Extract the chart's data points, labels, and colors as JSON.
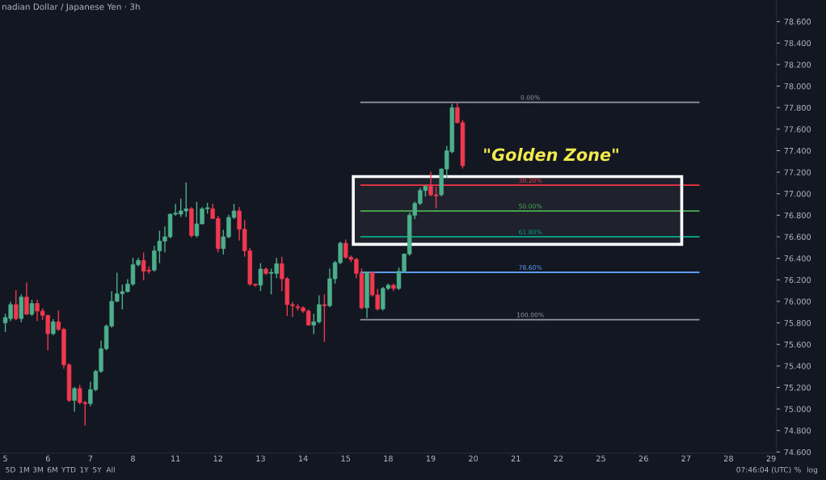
{
  "chart_data": {
    "type": "candlestick",
    "title": "nadian Dollar / Japanese Yen · 3h",
    "categories": [
      "5",
      null,
      null,
      null,
      null,
      null,
      null,
      null,
      "6",
      null,
      null,
      null,
      null,
      null,
      null,
      null,
      "7",
      null,
      null,
      null,
      null,
      null,
      null,
      null,
      "8",
      null,
      null,
      null,
      null,
      null,
      null,
      null,
      "11",
      null,
      null,
      null,
      null,
      null,
      null,
      null,
      "12",
      null,
      null,
      null,
      null,
      null,
      null,
      null,
      "13",
      null,
      null,
      null,
      null,
      null,
      null,
      null,
      "14",
      null,
      null,
      null,
      null,
      null,
      null,
      null,
      "15",
      null,
      null,
      null,
      null,
      null,
      null,
      null,
      "18",
      null,
      null,
      null,
      null,
      null,
      null,
      null,
      "19",
      null,
      null,
      null,
      null,
      null,
      null,
      null,
      "20",
      null,
      null,
      null,
      null,
      null,
      null,
      null,
      "21",
      null,
      null,
      null,
      null,
      null,
      null,
      null,
      "22",
      null,
      null,
      null,
      null,
      null,
      null,
      null,
      "25",
      null,
      null,
      null,
      null,
      null,
      null,
      null,
      "26",
      null,
      null,
      null,
      null,
      null,
      null,
      null,
      "27",
      null,
      null,
      null,
      null,
      null,
      null,
      null,
      "28",
      null,
      null,
      null,
      null,
      null,
      null,
      null,
      "29"
    ],
    "ohlc": [
      [
        75.8,
        75.88,
        75.72,
        75.85
      ],
      [
        75.84,
        75.99,
        75.82,
        75.97
      ],
      [
        75.97,
        76.1,
        75.83,
        75.84
      ],
      [
        75.84,
        76.06,
        75.81,
        76.04
      ],
      [
        76.04,
        76.17,
        75.88,
        75.88
      ],
      [
        75.88,
        76.01,
        75.87,
        75.98
      ],
      [
        75.98,
        76.01,
        75.82,
        75.91
      ],
      [
        75.91,
        75.93,
        75.83,
        75.87
      ],
      [
        75.87,
        75.87,
        75.55,
        75.7
      ],
      [
        75.7,
        75.83,
        75.69,
        75.81
      ],
      [
        75.81,
        75.91,
        75.73,
        75.74
      ],
      [
        75.74,
        75.75,
        75.38,
        75.41
      ],
      [
        75.41,
        75.42,
        75.07,
        75.08
      ],
      [
        75.08,
        75.2,
        74.98,
        75.19
      ],
      [
        75.19,
        75.22,
        75.05,
        75.06
      ],
      [
        75.06,
        75.07,
        74.85,
        75.05
      ],
      [
        75.05,
        75.25,
        75.03,
        75.18
      ],
      [
        75.18,
        75.36,
        75.17,
        75.35
      ],
      [
        75.35,
        75.63,
        75.34,
        75.56
      ],
      [
        75.56,
        75.78,
        75.55,
        75.77
      ],
      [
        75.77,
        76.09,
        75.76,
        76.0
      ],
      [
        76.0,
        76.26,
        76.0,
        76.07
      ],
      [
        76.07,
        76.15,
        75.93,
        76.09
      ],
      [
        76.09,
        76.2,
        76.09,
        76.16
      ],
      [
        76.16,
        76.4,
        76.15,
        76.34
      ],
      [
        76.34,
        76.4,
        76.33,
        76.38
      ],
      [
        76.38,
        76.45,
        76.2,
        76.28
      ],
      [
        76.29,
        76.32,
        76.26,
        76.28
      ],
      [
        76.29,
        76.51,
        76.28,
        76.47
      ],
      [
        76.47,
        76.65,
        76.36,
        76.56
      ],
      [
        76.56,
        76.69,
        76.46,
        76.6
      ],
      [
        76.6,
        76.81,
        76.59,
        76.81
      ],
      [
        76.81,
        76.9,
        76.8,
        76.82
      ],
      [
        76.81,
        76.95,
        76.79,
        76.84
      ],
      [
        76.84,
        77.1,
        76.79,
        76.86
      ],
      [
        76.86,
        76.87,
        76.6,
        76.61
      ],
      [
        76.61,
        76.92,
        76.6,
        76.72
      ],
      [
        76.72,
        76.87,
        76.72,
        76.86
      ],
      [
        76.86,
        76.91,
        76.82,
        76.87
      ],
      [
        76.86,
        76.9,
        76.77,
        76.77
      ],
      [
        76.77,
        76.79,
        76.46,
        76.49
      ],
      [
        76.49,
        76.66,
        76.44,
        76.6
      ],
      [
        76.6,
        76.8,
        76.59,
        76.78
      ],
      [
        76.78,
        76.9,
        76.77,
        76.84
      ],
      [
        76.84,
        76.87,
        76.57,
        76.67
      ],
      [
        76.67,
        76.75,
        76.42,
        76.47
      ],
      [
        76.47,
        76.49,
        76.15,
        76.16
      ],
      [
        76.16,
        76.16,
        76.14,
        76.15
      ],
      [
        76.15,
        76.35,
        76.1,
        76.3
      ],
      [
        76.3,
        76.31,
        76.25,
        76.26
      ],
      [
        76.26,
        76.3,
        76.07,
        76.27
      ],
      [
        76.26,
        76.4,
        76.22,
        76.35
      ],
      [
        76.35,
        76.41,
        76.1,
        76.21
      ],
      [
        76.21,
        76.22,
        75.87,
        75.97
      ],
      [
        75.97,
        75.99,
        75.86,
        75.96
      ],
      [
        75.95,
        75.97,
        75.92,
        75.94
      ],
      [
        75.94,
        75.95,
        75.9,
        75.91
      ],
      [
        75.91,
        75.92,
        75.78,
        75.78
      ],
      [
        75.78,
        75.88,
        75.7,
        75.81
      ],
      [
        75.81,
        76.05,
        75.8,
        75.97
      ],
      [
        75.97,
        76.06,
        75.63,
        75.96
      ],
      [
        75.96,
        76.3,
        75.95,
        76.21
      ],
      [
        76.21,
        76.37,
        76.17,
        76.36
      ],
      [
        76.36,
        76.55,
        76.35,
        76.54
      ],
      [
        76.54,
        76.57,
        76.4,
        76.41
      ],
      [
        76.41,
        76.42,
        76.37,
        76.39
      ],
      [
        76.39,
        76.4,
        76.22,
        76.26
      ],
      [
        76.26,
        76.3,
        75.93,
        75.94
      ],
      [
        75.94,
        76.27,
        75.85,
        76.27
      ],
      [
        76.27,
        76.27,
        76.05,
        76.06
      ],
      [
        76.06,
        76.11,
        75.92,
        75.93
      ],
      [
        75.93,
        76.13,
        75.92,
        76.12
      ],
      [
        76.12,
        76.16,
        76.11,
        76.15
      ],
      [
        76.15,
        76.16,
        76.1,
        76.12
      ],
      [
        76.12,
        76.31,
        76.11,
        76.28
      ],
      [
        76.28,
        76.44,
        76.27,
        76.44
      ],
      [
        76.44,
        76.82,
        76.43,
        76.8
      ],
      [
        76.8,
        76.92,
        76.77,
        76.91
      ],
      [
        76.91,
        77.05,
        76.9,
        77.03
      ],
      [
        77.03,
        77.07,
        76.98,
        77.07
      ],
      [
        77.07,
        77.2,
        76.98,
        76.99
      ],
      [
        76.99,
        77.06,
        76.87,
        76.98
      ],
      [
        76.99,
        77.23,
        76.98,
        77.23
      ],
      [
        77.23,
        77.44,
        77.15,
        77.4
      ],
      [
        77.39,
        77.83,
        77.38,
        77.8
      ],
      [
        77.8,
        77.84,
        77.66,
        77.66
      ],
      [
        77.66,
        77.68,
        77.24,
        77.26
      ],
      null,
      null,
      null,
      null,
      null,
      null,
      null,
      null,
      null,
      null,
      null,
      null,
      null,
      null,
      null,
      null,
      null,
      null,
      null,
      null,
      null,
      null,
      null,
      null,
      null,
      null,
      null,
      null,
      null,
      null,
      null,
      null,
      null,
      null,
      null,
      null,
      null,
      null,
      null,
      null,
      null,
      null,
      null,
      null,
      null,
      null,
      null,
      null,
      null,
      null,
      null,
      null,
      null,
      null,
      null,
      null,
      null,
      null
    ],
    "colors": [
      "#4caf8c",
      "#4caf8c",
      "#f0394f",
      "#4caf8c",
      "#f0394f",
      "#4caf8c",
      "#f0394f",
      "#f0394f",
      "#f0394f",
      "#4caf8c",
      "#f0394f",
      "#f0394f",
      "#f0394f",
      "#4caf8c",
      "#f0394f",
      "#f0394f",
      "#4caf8c",
      "#4caf8c",
      "#4caf8c",
      "#4caf8c",
      "#4caf8c",
      "#4caf8c",
      "#4caf8c",
      "#4caf8c",
      "#4caf8c",
      "#4caf8c",
      "#f0394f",
      "#f0394f",
      "#4caf8c",
      "#4caf8c",
      "#4caf8c",
      "#4caf8c",
      "#4caf8c",
      "#4caf8c",
      "#4caf8c",
      "#f0394f",
      "#4caf8c",
      "#4caf8c",
      "#4caf8c",
      "#f0394f",
      "#f0394f",
      "#4caf8c",
      "#4caf8c",
      "#4caf8c",
      "#f0394f",
      "#f0394f",
      "#f0394f",
      "#f0394f",
      "#4caf8c",
      "#f0394f",
      "#4caf8c",
      "#4caf8c",
      "#f0394f",
      "#f0394f",
      "#f0394f",
      "#f0394f",
      "#f0394f",
      "#f0394f",
      "#4caf8c",
      "#4caf8c",
      "#f0394f",
      "#4caf8c",
      "#4caf8c",
      "#4caf8c",
      "#f0394f",
      "#f0394f",
      "#f0394f",
      "#f0394f",
      "#4caf8c",
      "#f0394f",
      "#f0394f",
      "#4caf8c",
      "#4caf8c",
      "#f0394f",
      "#4caf8c",
      "#4caf8c",
      "#4caf8c",
      "#4caf8c",
      "#4caf8c",
      "#4caf8c",
      "#f0394f",
      "#f0394f",
      "#4caf8c",
      "#4caf8c",
      "#4caf8c",
      "#f0394f",
      "#f0394f",
      null,
      null,
      null,
      null,
      null,
      null,
      null,
      null,
      null,
      null,
      null,
      null,
      null,
      null,
      null,
      null,
      null,
      null,
      null,
      null,
      null,
      null,
      null,
      null,
      null,
      null,
      null,
      null,
      null,
      null,
      null,
      null,
      null,
      null,
      null,
      null,
      null,
      null,
      null,
      null,
      null,
      null,
      null,
      null,
      null,
      null,
      null,
      null,
      null,
      null,
      null,
      null,
      null,
      null,
      null,
      null,
      null,
      null
    ],
    "ylim": [
      74.59,
      78.8
    ],
    "yticks": [
      {
        "value": 78.6,
        "label": "78.600"
      },
      {
        "value": 78.4,
        "label": "78.400"
      },
      {
        "value": 78.2,
        "label": "78.200"
      },
      {
        "value": 78.0,
        "label": "78.000"
      },
      {
        "value": 77.8,
        "label": "77.800"
      },
      {
        "value": 77.6,
        "label": "77.600"
      },
      {
        "value": 77.4,
        "label": "77.400"
      },
      {
        "value": 77.2,
        "label": "77.200"
      },
      {
        "value": 77.0,
        "label": "77.000"
      },
      {
        "value": 76.8,
        "label": "76.800"
      },
      {
        "value": 76.6,
        "label": "76.600"
      },
      {
        "value": 76.4,
        "label": "76.400"
      },
      {
        "value": 76.2,
        "label": "76.200"
      },
      {
        "value": 76.0,
        "label": "76.000"
      },
      {
        "value": 75.8,
        "label": "75.800"
      },
      {
        "value": 75.6,
        "label": "75.600"
      },
      {
        "value": 75.4,
        "label": "75.400"
      },
      {
        "value": 75.2,
        "label": "75.200"
      },
      {
        "value": 75.0,
        "label": "75.000"
      },
      {
        "value": 74.8,
        "label": "74.800"
      },
      {
        "value": 74.6,
        "label": "74.600"
      }
    ],
    "ref_lines": [
      {
        "axis": "y",
        "value": 77.85,
        "color": "#9598a1"
      },
      {
        "axis": "y",
        "value": 77.08,
        "color": "#f23645"
      },
      {
        "axis": "y",
        "value": 76.84,
        "color": "#4caf50"
      },
      {
        "axis": "y",
        "value": 76.6,
        "color": "#089981"
      },
      {
        "axis": "y",
        "value": 76.27,
        "color": "#5b9cf6"
      },
      {
        "axis": "y",
        "value": 75.83,
        "color": "#9598a1"
      }
    ],
    "bands": [
      {
        "axis": "y",
        "from": 76.53,
        "to": 77.16,
        "label": "\"Golden Zone\"",
        "color": "#ffffff"
      }
    ],
    "annotations": [
      {
        "text": "0.00%",
        "y": 77.85
      },
      {
        "text": "38.20%",
        "y": 77.08
      },
      {
        "text": "50.00%",
        "y": 76.84
      },
      {
        "text": "61.80%",
        "y": 76.6
      },
      {
        "text": "78.60%",
        "y": 76.27
      },
      {
        "text": "100.00%",
        "y": 75.83
      },
      "5D",
      "1M",
      "3M",
      "6M",
      "YTD",
      "1Y",
      "5Y",
      "All",
      "07:46:04 (UTC)",
      "%",
      "log"
    ],
    "grid": false,
    "legend": false
  }
}
